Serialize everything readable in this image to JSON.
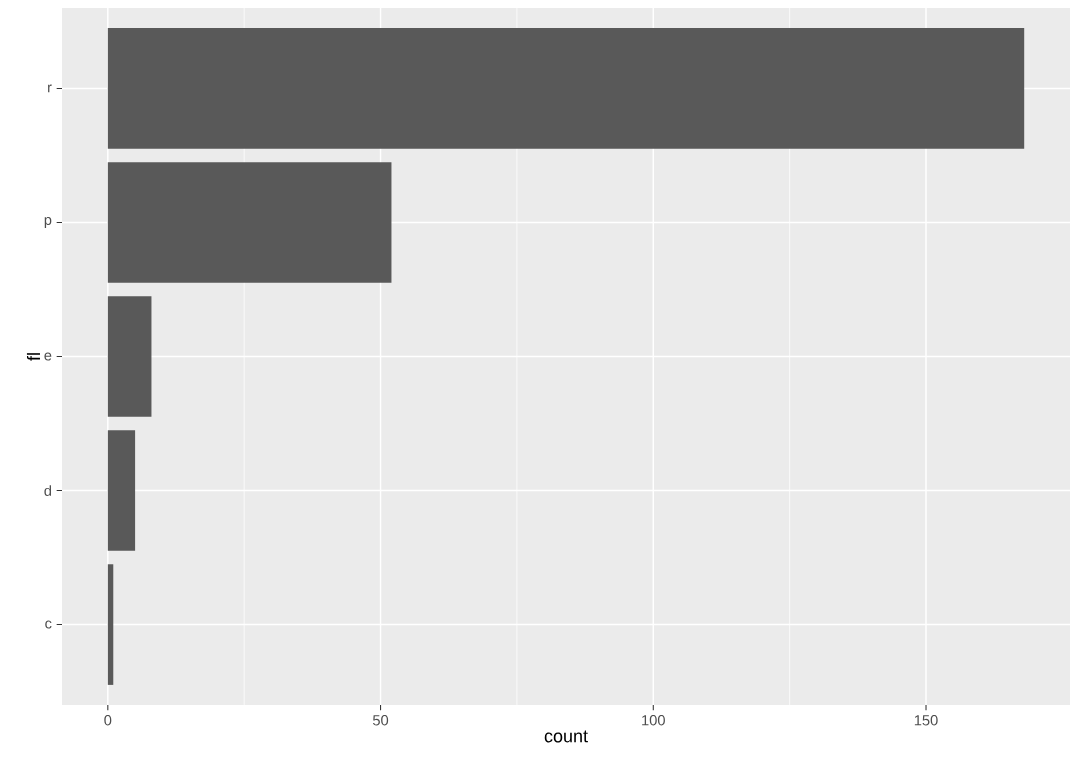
{
  "chart_data": {
    "type": "bar",
    "orientation": "horizontal",
    "xlabel": "count",
    "ylabel": "fl",
    "categories": [
      "r",
      "p",
      "e",
      "d",
      "c"
    ],
    "values": [
      168,
      52,
      8,
      5,
      1
    ],
    "color": "#595959",
    "xlim": [
      -8.4,
      176.4
    ],
    "xticks": [
      0,
      {
        "value": 25,
        "label": null
      },
      50,
      {
        "value": 75,
        "label": null
      },
      100,
      {
        "value": 125,
        "label": null
      },
      150
    ],
    "grid": true
  }
}
